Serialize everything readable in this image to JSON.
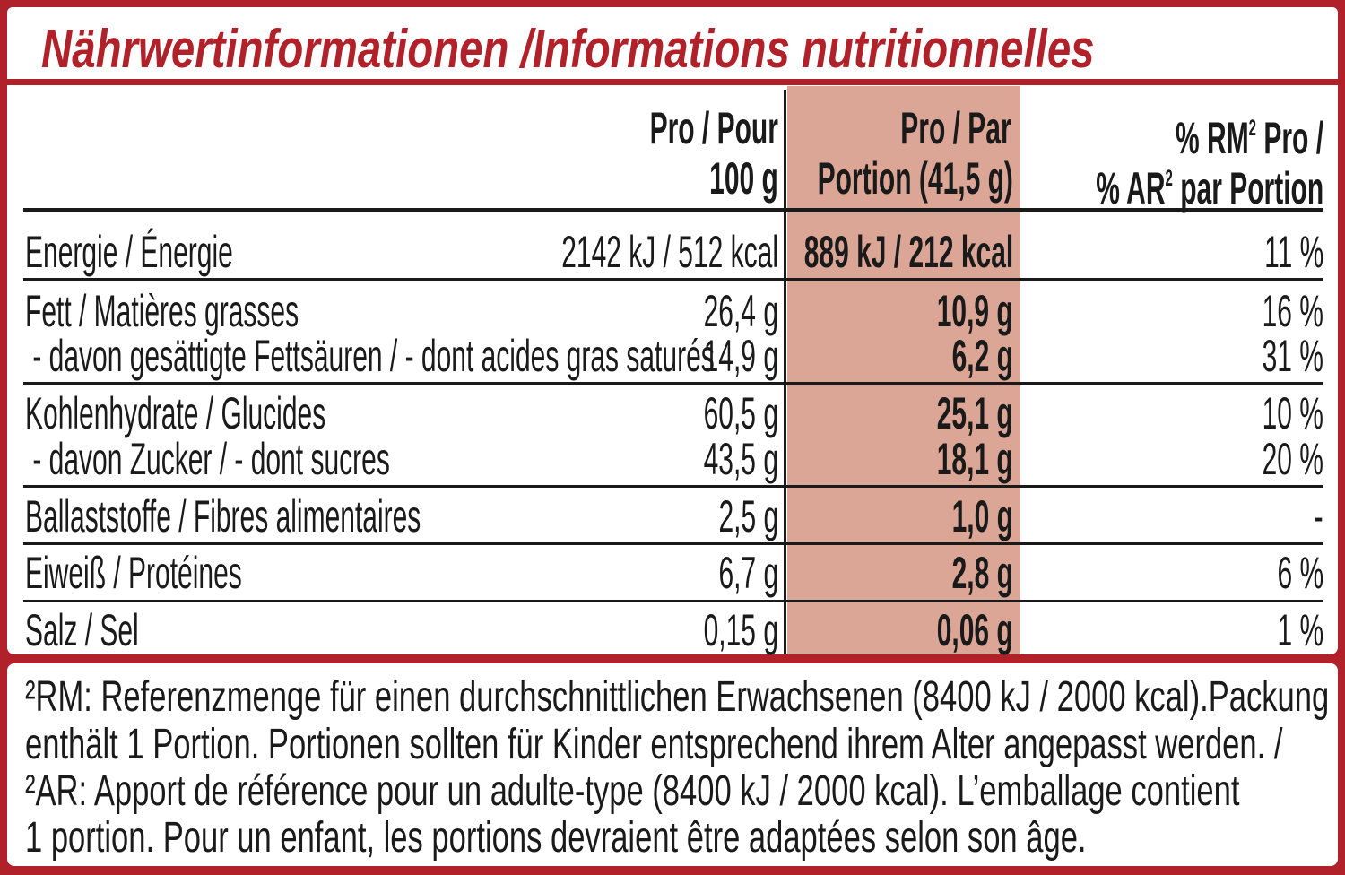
{
  "title": "Nährwertinformationen /Informations nutritionnelles",
  "colors": {
    "border": "#b0212a",
    "portion_column": "#dca697",
    "title": "#b0212a"
  },
  "headers": {
    "per100": [
      "Pro / Pour",
      "100 g"
    ],
    "portion": [
      "Pro / Par",
      "Portion (41,5 g)"
    ],
    "ri_line1_pre": "% RM",
    "ri_line1_sup": "2",
    "ri_line1_post": " Pro /",
    "ri_line2_pre": "% AR",
    "ri_line2_sup": "2",
    "ri_line2_post": " par Portion"
  },
  "rows": [
    {
      "label": "Energie / Énergie",
      "per100": "2142 kJ / 512 kcal",
      "portion": "889 kJ / 212 kcal",
      "ri": "11 %"
    },
    {
      "label": "Fett / Matières grasses",
      "per100": "26,4 g",
      "portion": "10,9 g",
      "ri": "16 %"
    },
    {
      "label": " - davon gesättigte Fettsäuren / - dont acides gras saturés",
      "per100": "14,9 g",
      "portion": "6,2 g",
      "ri": "31 %"
    },
    {
      "label": "Kohlenhydrate / Glucides",
      "per100": "60,5 g",
      "portion": "25,1 g",
      "ri": "10 %"
    },
    {
      "label": " - davon Zucker / - dont sucres",
      "per100": "43,5 g",
      "portion": "18,1 g",
      "ri": "20 %"
    },
    {
      "label": "Ballaststoffe / Fibres alimentaires",
      "per100": "2,5 g",
      "portion": "1,0 g",
      "ri": "-"
    },
    {
      "label": "Eiweiß / Protéines",
      "per100": "6,7 g",
      "portion": "2,8 g",
      "ri": "6 %"
    },
    {
      "label": "Salz / Sel",
      "per100": "0,15 g",
      "portion": "0,06 g",
      "ri": "1 %"
    }
  ],
  "footnote": [
    "²RM: Referenzmenge für einen durchschnittlichen Erwachsenen (8400 kJ / 2000 kcal).Packung",
    "enthält 1 Portion. Portionen sollten für Kinder entsprechend ihrem Alter angepasst werden. /",
    "²AR: Apport de référence pour un adulte-type (8400 kJ / 2000 kcal). L’emballage contient",
    "1 portion. Pour un enfant, les portions devraient être adaptées selon son âge."
  ]
}
